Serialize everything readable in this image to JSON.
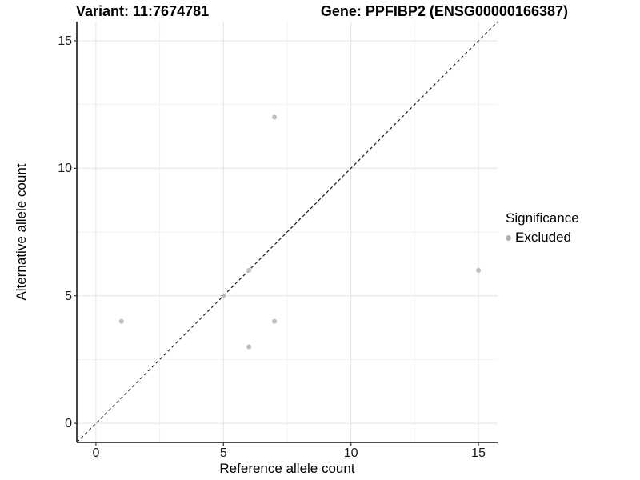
{
  "chart_data": {
    "type": "scatter",
    "title_variant": "Variant: 11:7674781",
    "title_gene": "Gene: PPFIBP2 (ENSG00000166387)",
    "xlabel": "Reference allele count",
    "ylabel": "Alternative allele count",
    "xlim": [
      -0.75,
      15.75
    ],
    "ylim": [
      -0.75,
      15.75
    ],
    "x_ticks": [
      0,
      5,
      10,
      15
    ],
    "y_ticks": [
      0,
      5,
      10,
      15
    ],
    "x_minor_ticks": [
      2.5,
      7.5,
      12.5
    ],
    "y_minor_ticks": [
      2.5,
      7.5,
      12.5
    ],
    "grid": true,
    "series": [
      {
        "name": "Excluded",
        "color": "#bdbdbd",
        "point_radius": 3,
        "points": [
          [
            1,
            4
          ],
          [
            5,
            5
          ],
          [
            6,
            3
          ],
          [
            6,
            6
          ],
          [
            7,
            4
          ],
          [
            7,
            12
          ],
          [
            15,
            6
          ]
        ]
      }
    ],
    "reference_line": {
      "type": "identity",
      "style": "dashed",
      "dash": "4 3",
      "color": "#1a1a1a",
      "width": 1.2
    },
    "legend": {
      "position": "right",
      "title": "Significance",
      "entries": [
        {
          "label": "Excluded",
          "color": "#b3b3b3"
        }
      ]
    },
    "style": {
      "background": "#ffffff",
      "grid_major_color": "#e4e4e4",
      "grid_minor_color": "#f2f2f2",
      "axis_line_color": "#333333",
      "tick_mark_color": "#333333",
      "tick_length": 4
    }
  }
}
